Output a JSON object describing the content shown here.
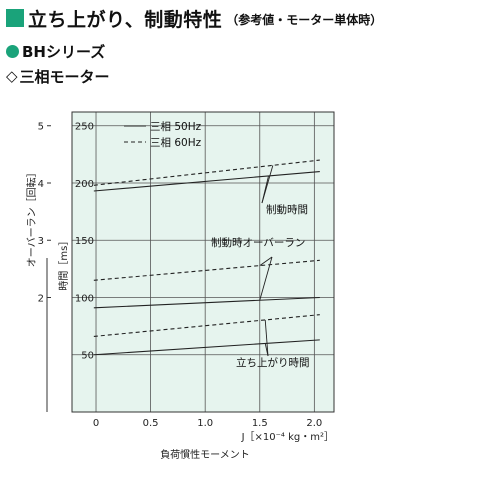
{
  "header": {
    "title": "立ち上がり、制動特性",
    "title_note": "（参考値・モーター単体時）",
    "series": "BHシリーズ",
    "subtitle_mark": "◇",
    "subtitle": "三相モーター"
  },
  "colors": {
    "accent": "#1aa37a",
    "plot_bg": "#e6f4ee",
    "line": "#222222"
  },
  "chart_data": {
    "type": "line",
    "x": [
      0,
      2.1
    ],
    "x_ticks": [
      "0",
      "0.5",
      "1.0",
      "1.5",
      "2.0"
    ],
    "x_tick_values": [
      0,
      0.5,
      1.0,
      1.5,
      2.0
    ],
    "xlabel": "J［×10⁻⁴ kg・m²］",
    "xlabel_sub": "負荷慣性モーメント",
    "xlim": [
      -0.22,
      2.18
    ],
    "time_axis": {
      "label": "時間［ms］",
      "ticks": [
        "50",
        "100",
        "150",
        "200",
        "250"
      ],
      "tick_values": [
        50,
        100,
        150,
        200,
        250
      ],
      "ylim": [
        0,
        262
      ]
    },
    "overrun_axis": {
      "label": "オーバーラン［回転］",
      "ticks": [
        "2",
        "3",
        "4",
        "5"
      ],
      "tick_values": [
        2,
        3,
        4,
        5
      ],
      "ylim": [
        0,
        5.24
      ]
    },
    "legend": [
      {
        "name": "三相 50Hz",
        "style": "solid"
      },
      {
        "name": "三相 60Hz",
        "style": "dashed"
      }
    ],
    "grid": true,
    "series": [
      {
        "group": "braking_time",
        "freq": "50Hz",
        "style": "solid",
        "axis": "time",
        "x": [
          -0.02,
          2.05
        ],
        "y": [
          193,
          210
        ]
      },
      {
        "group": "braking_time",
        "freq": "60Hz",
        "style": "dashed",
        "axis": "time",
        "x": [
          -0.02,
          2.05
        ],
        "y": [
          198,
          220
        ]
      },
      {
        "group": "overrun",
        "freq": "60Hz",
        "style": "dashed",
        "axis": "overrun",
        "x": [
          -0.02,
          2.05
        ],
        "y": [
          2.3,
          2.65
        ]
      },
      {
        "group": "overrun",
        "freq": "50Hz",
        "style": "solid",
        "axis": "overrun",
        "x": [
          -0.02,
          2.05
        ],
        "y": [
          1.82,
          2.0
        ]
      },
      {
        "group": "startup_time",
        "freq": "60Hz",
        "style": "dashed",
        "axis": "time",
        "x": [
          -0.02,
          2.05
        ],
        "y": [
          66,
          85
        ]
      },
      {
        "group": "startup_time",
        "freq": "50Hz",
        "style": "solid",
        "axis": "time",
        "x": [
          -0.02,
          2.05
        ],
        "y": [
          50,
          63
        ]
      }
    ],
    "annotations": [
      {
        "text": "制動時間",
        "group": "braking_time"
      },
      {
        "text": "制動時オーバーラン",
        "group": "overrun"
      },
      {
        "text": "立ち上がり時間",
        "group": "startup_time"
      }
    ]
  }
}
